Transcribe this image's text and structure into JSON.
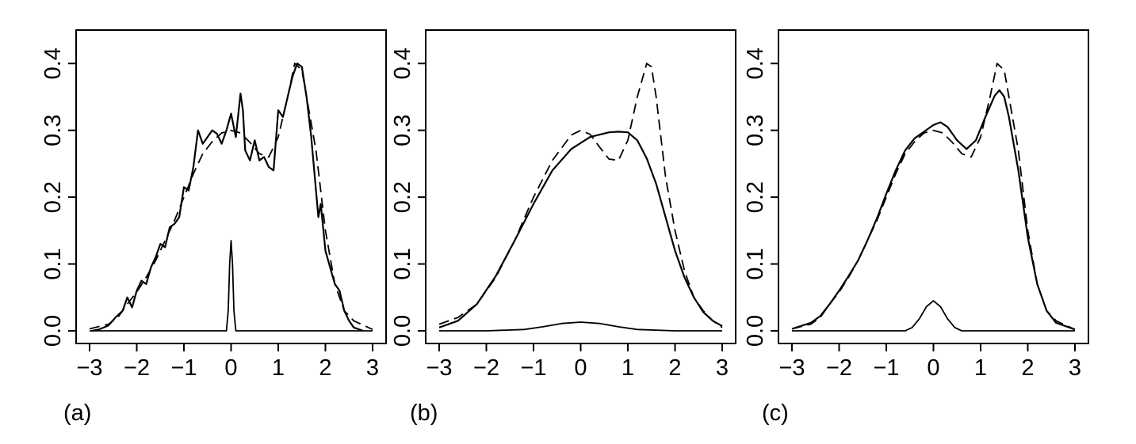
{
  "figure": {
    "panels": [
      {
        "label": "(a)"
      },
      {
        "label": "(b)"
      },
      {
        "label": "(c)"
      }
    ]
  },
  "chart_data": [
    {
      "type": "line",
      "label": "(a)",
      "xlim": [
        -3,
        3
      ],
      "ylim": [
        0,
        0.45
      ],
      "xticks": [
        "-3",
        "-2",
        "-1",
        "0",
        "1",
        "2",
        "3"
      ],
      "yticks": [
        "0.0",
        "0.1",
        "0.2",
        "0.3",
        "0.4"
      ],
      "grid": false,
      "series": [
        {
          "style": "dashed",
          "x": [
            -3.0,
            -2.6,
            -2.4,
            -2.2,
            -2.0,
            -1.8,
            -1.6,
            -1.4,
            -1.2,
            -1.0,
            -0.8,
            -0.6,
            -0.4,
            -0.2,
            0.0,
            0.2,
            0.4,
            0.6,
            0.8,
            1.0,
            1.2,
            1.35,
            1.5,
            1.6,
            1.8,
            2.0,
            2.2,
            2.4,
            2.6,
            3.0
          ],
          "y": [
            0.003,
            0.01,
            0.02,
            0.04,
            0.058,
            0.08,
            0.105,
            0.135,
            0.165,
            0.2,
            0.235,
            0.265,
            0.283,
            0.296,
            0.3,
            0.296,
            0.282,
            0.265,
            0.26,
            0.29,
            0.35,
            0.4,
            0.39,
            0.35,
            0.27,
            0.15,
            0.07,
            0.03,
            0.015,
            0.002
          ]
        },
        {
          "style": "solid",
          "x": [
            -2.95,
            -2.8,
            -2.6,
            -2.45,
            -2.3,
            -2.2,
            -2.1,
            -2.0,
            -1.9,
            -1.8,
            -1.7,
            -1.6,
            -1.5,
            -1.4,
            -1.3,
            -1.2,
            -1.1,
            -1.0,
            -0.9,
            -0.8,
            -0.7,
            -0.6,
            -0.5,
            -0.4,
            -0.3,
            -0.2,
            -0.1,
            0.0,
            0.1,
            0.2,
            0.25,
            0.3,
            0.4,
            0.5,
            0.6,
            0.7,
            0.8,
            0.9,
            1.0,
            1.1,
            1.2,
            1.3,
            1.4,
            1.5,
            1.6,
            1.7,
            1.8,
            1.85,
            1.9,
            2.0,
            2.1,
            2.2,
            2.3,
            2.4,
            2.5,
            2.6,
            2.8
          ],
          "y": [
            0.0,
            0.002,
            0.008,
            0.02,
            0.03,
            0.05,
            0.035,
            0.06,
            0.075,
            0.07,
            0.095,
            0.11,
            0.13,
            0.125,
            0.155,
            0.16,
            0.17,
            0.215,
            0.21,
            0.245,
            0.3,
            0.28,
            0.29,
            0.3,
            0.295,
            0.28,
            0.3,
            0.325,
            0.29,
            0.355,
            0.33,
            0.27,
            0.255,
            0.285,
            0.255,
            0.26,
            0.245,
            0.24,
            0.33,
            0.32,
            0.35,
            0.38,
            0.4,
            0.395,
            0.35,
            0.29,
            0.21,
            0.17,
            0.19,
            0.12,
            0.095,
            0.07,
            0.06,
            0.03,
            0.015,
            0.005,
            0.0
          ]
        },
        {
          "style": "solid",
          "x": [
            -3.0,
            -0.1,
            -0.06,
            -0.03,
            0.0,
            0.03,
            0.06,
            0.1,
            3.0
          ],
          "y": [
            0.0,
            0.0,
            0.03,
            0.1,
            0.135,
            0.1,
            0.03,
            0.0,
            0.0
          ]
        }
      ]
    },
    {
      "type": "line",
      "label": "(b)",
      "xlim": [
        -3,
        3
      ],
      "ylim": [
        0,
        0.45
      ],
      "xticks": [
        "-3",
        "-2",
        "-1",
        "0",
        "1",
        "2",
        "3"
      ],
      "yticks": [
        "0.0",
        "0.1",
        "0.2",
        "0.3",
        "0.4"
      ],
      "grid": false,
      "series": [
        {
          "style": "dashed",
          "x": [
            -3.0,
            -2.6,
            -2.2,
            -1.8,
            -1.4,
            -1.0,
            -0.6,
            -0.2,
            0.0,
            0.2,
            0.4,
            0.6,
            0.8,
            1.0,
            1.2,
            1.4,
            1.5,
            1.6,
            1.8,
            2.0,
            2.2,
            2.4,
            2.6,
            2.8,
            3.0
          ],
          "y": [
            0.01,
            0.02,
            0.04,
            0.08,
            0.135,
            0.2,
            0.255,
            0.293,
            0.3,
            0.294,
            0.275,
            0.257,
            0.255,
            0.285,
            0.35,
            0.4,
            0.395,
            0.35,
            0.23,
            0.15,
            0.09,
            0.05,
            0.03,
            0.015,
            0.005
          ]
        },
        {
          "style": "solid",
          "x": [
            -3.0,
            -2.6,
            -2.2,
            -1.8,
            -1.4,
            -1.0,
            -0.6,
            -0.2,
            0.2,
            0.6,
            0.8,
            1.0,
            1.2,
            1.4,
            1.6,
            1.8,
            2.0,
            2.2,
            2.4,
            2.6,
            2.8,
            3.0
          ],
          "y": [
            0.005,
            0.015,
            0.04,
            0.082,
            0.135,
            0.19,
            0.24,
            0.272,
            0.29,
            0.297,
            0.298,
            0.297,
            0.285,
            0.258,
            0.22,
            0.17,
            0.12,
            0.08,
            0.05,
            0.028,
            0.015,
            0.007
          ]
        },
        {
          "style": "solid",
          "x": [
            -3.0,
            -2.0,
            -1.2,
            -0.8,
            -0.4,
            0.0,
            0.4,
            0.8,
            1.2,
            2.0,
            3.0
          ],
          "y": [
            0.0,
            0.0,
            0.002,
            0.006,
            0.011,
            0.013,
            0.011,
            0.006,
            0.002,
            0.0,
            0.0
          ]
        }
      ]
    },
    {
      "type": "line",
      "label": "(c)",
      "xlim": [
        -3,
        3
      ],
      "ylim": [
        0,
        0.45
      ],
      "xticks": [
        "-3",
        "-2",
        "-1",
        "0",
        "1",
        "2",
        "3"
      ],
      "yticks": [
        "0.0",
        "0.1",
        "0.2",
        "0.3",
        "0.4"
      ],
      "grid": false,
      "series": [
        {
          "style": "dashed",
          "x": [
            -3.0,
            -2.6,
            -2.4,
            -2.2,
            -2.0,
            -1.8,
            -1.6,
            -1.4,
            -1.2,
            -1.0,
            -0.8,
            -0.6,
            -0.4,
            -0.2,
            0.0,
            0.2,
            0.4,
            0.6,
            0.8,
            1.0,
            1.2,
            1.35,
            1.5,
            1.6,
            1.8,
            2.0,
            2.2,
            2.4,
            2.6,
            3.0
          ],
          "y": [
            0.003,
            0.01,
            0.02,
            0.04,
            0.058,
            0.08,
            0.105,
            0.135,
            0.165,
            0.2,
            0.235,
            0.265,
            0.283,
            0.296,
            0.3,
            0.296,
            0.282,
            0.265,
            0.26,
            0.29,
            0.35,
            0.4,
            0.39,
            0.35,
            0.27,
            0.15,
            0.07,
            0.03,
            0.015,
            0.002
          ]
        },
        {
          "style": "solid",
          "x": [
            -3.0,
            -2.6,
            -2.4,
            -2.2,
            -2.0,
            -1.8,
            -1.6,
            -1.4,
            -1.2,
            -1.0,
            -0.8,
            -0.6,
            -0.4,
            -0.2,
            0.0,
            0.15,
            0.3,
            0.5,
            0.7,
            0.9,
            1.1,
            1.3,
            1.4,
            1.5,
            1.6,
            1.8,
            2.0,
            2.2,
            2.4,
            2.6,
            3.0
          ],
          "y": [
            0.003,
            0.012,
            0.022,
            0.04,
            0.06,
            0.082,
            0.105,
            0.135,
            0.168,
            0.205,
            0.24,
            0.27,
            0.288,
            0.298,
            0.308,
            0.312,
            0.305,
            0.285,
            0.272,
            0.285,
            0.32,
            0.352,
            0.36,
            0.35,
            0.32,
            0.24,
            0.14,
            0.07,
            0.03,
            0.012,
            0.002
          ]
        },
        {
          "style": "solid",
          "x": [
            -3.0,
            -0.6,
            -0.45,
            -0.3,
            -0.15,
            0.0,
            0.15,
            0.3,
            0.45,
            0.6,
            3.0
          ],
          "y": [
            0.0,
            0.0,
            0.005,
            0.018,
            0.036,
            0.045,
            0.036,
            0.018,
            0.005,
            0.0,
            0.0
          ]
        }
      ]
    }
  ]
}
